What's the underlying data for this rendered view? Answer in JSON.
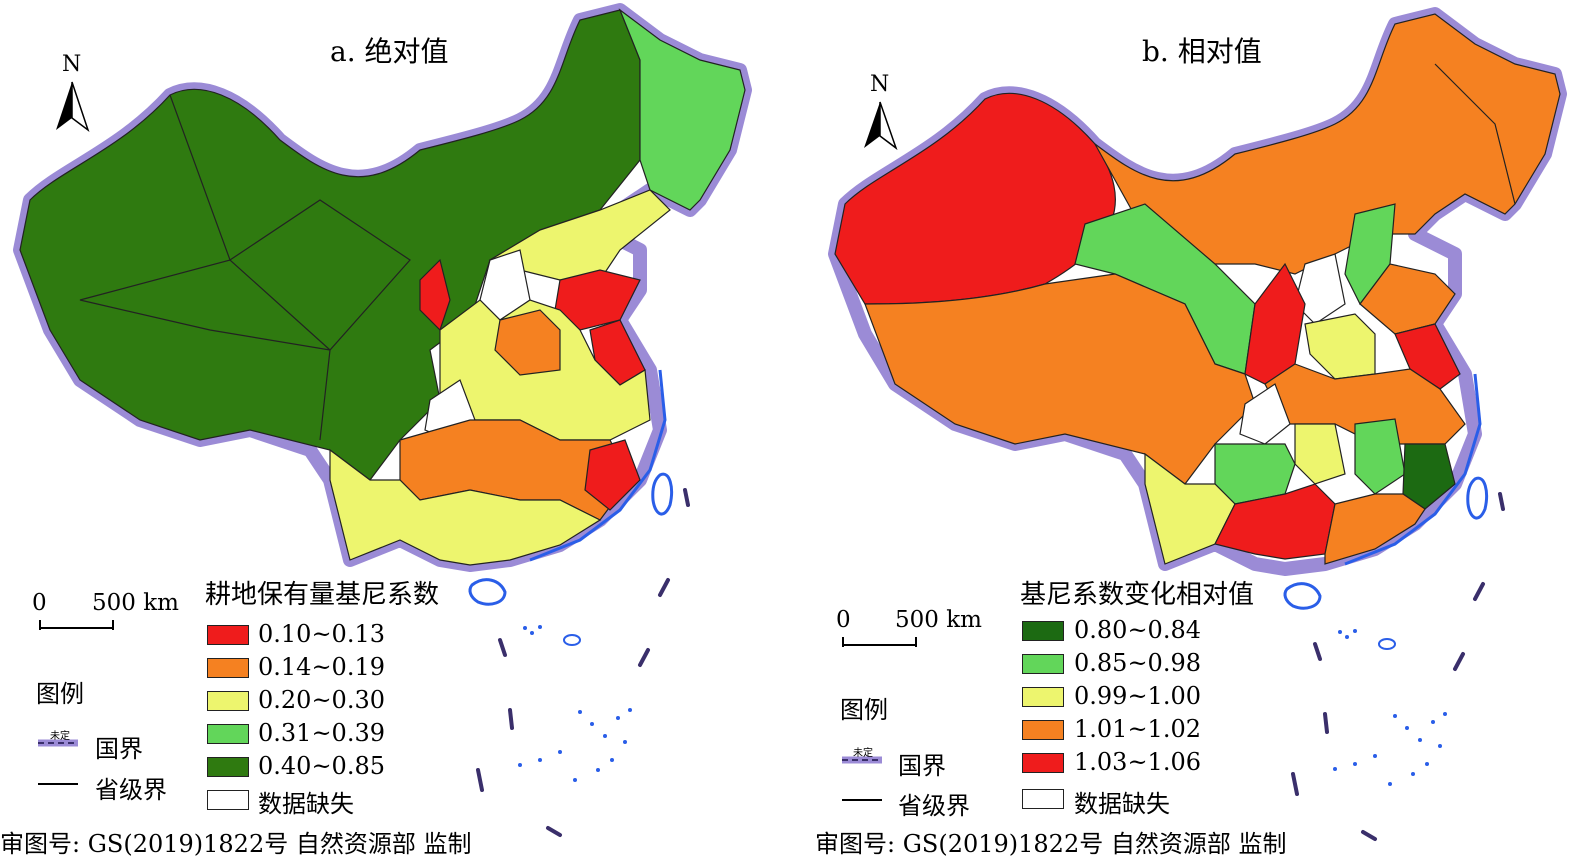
{
  "panels": [
    {
      "title": "a. 绝对值",
      "legend_title": "耕地保有量基尼系数",
      "classes": [
        {
          "label": "0.10~0.13",
          "color": "#ef1c1c"
        },
        {
          "label": "0.14~0.19",
          "color": "#f58121"
        },
        {
          "label": "0.20~0.30",
          "color": "#edf56e"
        },
        {
          "label": "0.31~0.39",
          "color": "#62d65a"
        },
        {
          "label": "0.40~0.85",
          "color": "#2f7a10"
        }
      ],
      "missing_label": "数据缺失"
    },
    {
      "title": "b. 相对值",
      "legend_title": "基尼系数变化相对值",
      "classes": [
        {
          "label": "0.80~0.84",
          "color": "#1c6a12"
        },
        {
          "label": "0.85~0.98",
          "color": "#62d65a"
        },
        {
          "label": "0.99~1.00",
          "color": "#edf56e"
        },
        {
          "label": "1.01~1.02",
          "color": "#f58121"
        },
        {
          "label": "1.03~1.06",
          "color": "#ef1c1c"
        }
      ],
      "missing_label": "数据缺失"
    }
  ],
  "north_label": "N",
  "scale_bar": {
    "start": "0",
    "end": "500 km"
  },
  "legend_heading": "图例",
  "boundary_legend": {
    "national_border": "国界",
    "undetermined": "未定",
    "provincial_border": "省级界"
  },
  "approval_note": "审图号: GS(2019)1822号 自然资源部 监制",
  "colors": {
    "border_halo": "#9b8bd6",
    "coast_line": "#2a5ee8",
    "missing_fill": "#ffffff"
  }
}
